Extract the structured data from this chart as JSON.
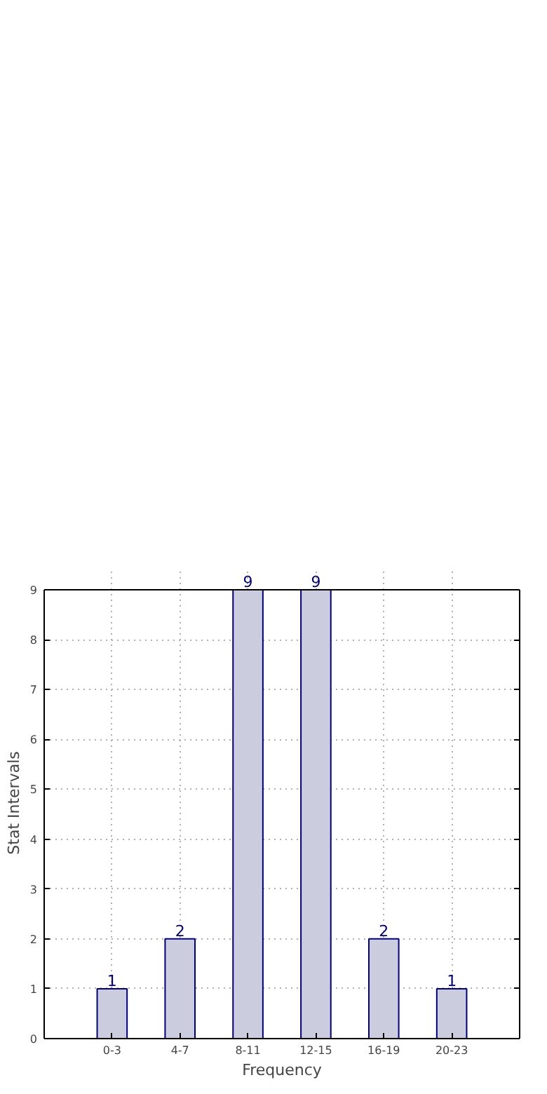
{
  "chart_data": {
    "type": "bar",
    "xlabel": "Frequency",
    "ylabel": "Stat Intervals",
    "categories": [
      "0-3",
      "4-7",
      "8-11",
      "12-15",
      "16-19",
      "20-23"
    ],
    "values": [
      1,
      2,
      9,
      9,
      2,
      1
    ],
    "color": "#ccccdf",
    "ylim": [
      0,
      9
    ],
    "yticks": [
      0,
      1,
      2,
      3,
      4,
      5,
      6,
      7,
      8,
      9
    ],
    "grid": true,
    "data_labels": true
  }
}
